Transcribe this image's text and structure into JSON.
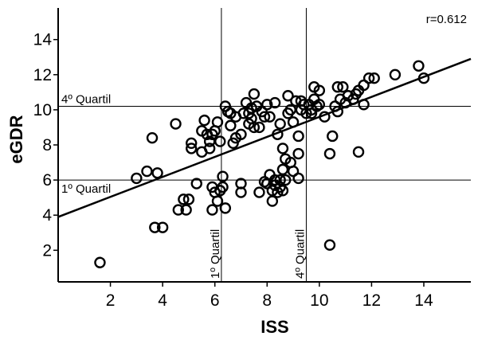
{
  "chart_data": {
    "type": "scatter",
    "xlabel": "ISS",
    "ylabel": "eGDR",
    "xlim": [
      0,
      15.8
    ],
    "ylim": [
      0.2,
      15.8
    ],
    "x_ticks": [
      2,
      4,
      6,
      8,
      10,
      12,
      14
    ],
    "y_ticks": [
      2,
      4,
      6,
      8,
      10,
      12,
      14
    ],
    "annotation": "r=0.612",
    "regression_line": {
      "x": [
        0,
        15.8
      ],
      "y": [
        3.9,
        12.9
      ]
    },
    "reference_lines": {
      "horizontal": [
        {
          "y": 6.0,
          "label": "1º Quartil"
        },
        {
          "y": 10.2,
          "label": "4º Quartil"
        }
      ],
      "vertical": [
        {
          "x": 6.25,
          "label": "1º Quartil"
        },
        {
          "x": 9.5,
          "label": "4º Quartil"
        }
      ]
    },
    "points": [
      [
        1.6,
        1.3
      ],
      [
        3.0,
        6.1
      ],
      [
        3.4,
        6.5
      ],
      [
        3.6,
        8.4
      ],
      [
        3.8,
        6.4
      ],
      [
        3.7,
        3.3
      ],
      [
        4.0,
        3.3
      ],
      [
        4.5,
        9.2
      ],
      [
        4.6,
        4.3
      ],
      [
        4.8,
        4.9
      ],
      [
        4.9,
        4.3
      ],
      [
        5.0,
        4.9
      ],
      [
        5.1,
        8.1
      ],
      [
        5.1,
        7.8
      ],
      [
        5.3,
        5.8
      ],
      [
        5.5,
        8.8
      ],
      [
        5.5,
        7.6
      ],
      [
        5.6,
        9.4
      ],
      [
        5.7,
        8.6
      ],
      [
        5.8,
        8.2
      ],
      [
        5.8,
        7.8
      ],
      [
        5.9,
        8.6
      ],
      [
        5.9,
        5.6
      ],
      [
        5.9,
        4.3
      ],
      [
        6.0,
        8.8
      ],
      [
        6.0,
        5.3
      ],
      [
        6.1,
        4.8
      ],
      [
        6.1,
        9.3
      ],
      [
        6.2,
        8.2
      ],
      [
        6.2,
        5.4
      ],
      [
        6.3,
        6.2
      ],
      [
        6.3,
        5.6
      ],
      [
        6.4,
        4.4
      ],
      [
        6.4,
        10.2
      ],
      [
        6.5,
        9.9
      ],
      [
        6.6,
        9.8
      ],
      [
        6.6,
        9.1
      ],
      [
        6.7,
        8.1
      ],
      [
        6.8,
        9.6
      ],
      [
        6.8,
        8.4
      ],
      [
        7.0,
        8.6
      ],
      [
        7.0,
        5.8
      ],
      [
        7.0,
        5.3
      ],
      [
        7.1,
        9.8
      ],
      [
        7.2,
        10.4
      ],
      [
        7.3,
        9.8
      ],
      [
        7.3,
        9.2
      ],
      [
        7.4,
        10.1
      ],
      [
        7.4,
        9.5
      ],
      [
        7.5,
        10.9
      ],
      [
        7.5,
        9.0
      ],
      [
        7.6,
        10.2
      ],
      [
        7.7,
        9.0
      ],
      [
        7.7,
        5.3
      ],
      [
        7.8,
        9.9
      ],
      [
        7.9,
        5.9
      ],
      [
        7.9,
        9.6
      ],
      [
        8.0,
        10.3
      ],
      [
        8.0,
        5.8
      ],
      [
        8.1,
        9.6
      ],
      [
        8.1,
        6.3
      ],
      [
        8.2,
        5.4
      ],
      [
        8.2,
        4.8
      ],
      [
        8.3,
        6.0
      ],
      [
        8.3,
        5.7
      ],
      [
        8.3,
        10.4
      ],
      [
        8.4,
        5.3
      ],
      [
        8.4,
        8.6
      ],
      [
        8.5,
        9.2
      ],
      [
        8.5,
        6.0
      ],
      [
        8.5,
        5.6
      ],
      [
        8.6,
        7.8
      ],
      [
        8.6,
        6.6
      ],
      [
        8.6,
        5.4
      ],
      [
        8.7,
        7.2
      ],
      [
        8.7,
        6.0
      ],
      [
        8.8,
        10.8
      ],
      [
        8.8,
        9.8
      ],
      [
        8.9,
        10.0
      ],
      [
        8.9,
        7.0
      ],
      [
        9.0,
        9.3
      ],
      [
        9.0,
        6.5
      ],
      [
        9.1,
        10.5
      ],
      [
        9.2,
        8.5
      ],
      [
        9.2,
        7.5
      ],
      [
        9.2,
        6.1
      ],
      [
        9.3,
        10.5
      ],
      [
        9.3,
        10.0
      ],
      [
        9.4,
        10.3
      ],
      [
        9.5,
        9.8
      ],
      [
        9.6,
        10.3
      ],
      [
        9.7,
        10.0
      ],
      [
        9.7,
        9.8
      ],
      [
        9.8,
        11.3
      ],
      [
        9.8,
        10.6
      ],
      [
        9.9,
        10.2
      ],
      [
        10.0,
        11.1
      ],
      [
        10.0,
        10.3
      ],
      [
        10.2,
        9.6
      ],
      [
        10.4,
        7.5
      ],
      [
        10.4,
        2.3
      ],
      [
        10.5,
        8.5
      ],
      [
        10.6,
        10.2
      ],
      [
        10.7,
        9.9
      ],
      [
        10.7,
        11.3
      ],
      [
        10.8,
        10.6
      ],
      [
        10.9,
        11.3
      ],
      [
        11.0,
        10.4
      ],
      [
        11.1,
        10.8
      ],
      [
        11.3,
        10.6
      ],
      [
        11.4,
        10.9
      ],
      [
        11.5,
        7.6
      ],
      [
        11.5,
        11.1
      ],
      [
        11.7,
        11.4
      ],
      [
        11.7,
        10.3
      ],
      [
        11.9,
        11.8
      ],
      [
        12.1,
        11.8
      ],
      [
        12.9,
        12.0
      ],
      [
        13.8,
        12.5
      ],
      [
        14.0,
        11.8
      ]
    ]
  }
}
